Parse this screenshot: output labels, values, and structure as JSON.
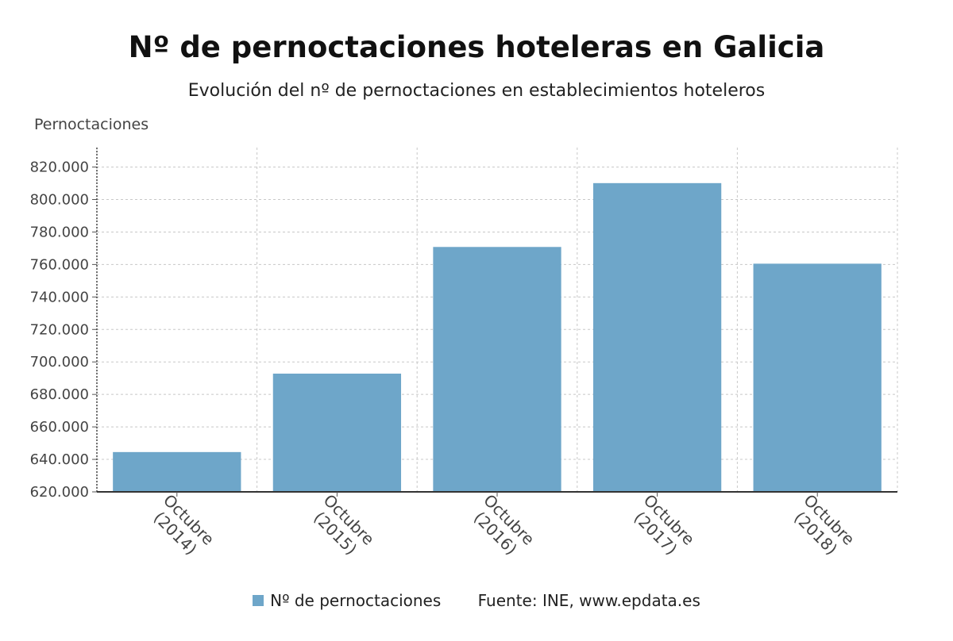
{
  "chart_data": {
    "type": "bar",
    "title": "Nº de pernoctaciones hoteleras en Galicia",
    "subtitle": "Evolución del nº de pernoctaciones en establecimientos hoteleros",
    "ylabel": "Pernoctaciones",
    "xlabel": "",
    "categories": [
      "Octubre (2014)",
      "Octubre (2015)",
      "Octubre (2016)",
      "Octubre (2017)",
      "Octubre (2018)"
    ],
    "series": [
      {
        "name": "Nº de pernoctaciones",
        "values": [
          644500,
          692800,
          770800,
          810100,
          760500
        ],
        "color": "#6ea6c9"
      }
    ],
    "ylim": [
      620000,
      832000
    ],
    "yticks": [
      620000,
      640000,
      660000,
      680000,
      700000,
      720000,
      740000,
      760000,
      780000,
      800000,
      820000
    ],
    "ytick_labels": [
      "620.000",
      "640.000",
      "660.000",
      "680.000",
      "700.000",
      "720.000",
      "740.000",
      "760.000",
      "780.000",
      "800.000",
      "820.000"
    ],
    "grid": true,
    "legend_position": "bottom"
  },
  "source": "Fuente: INE, www.epdata.es"
}
